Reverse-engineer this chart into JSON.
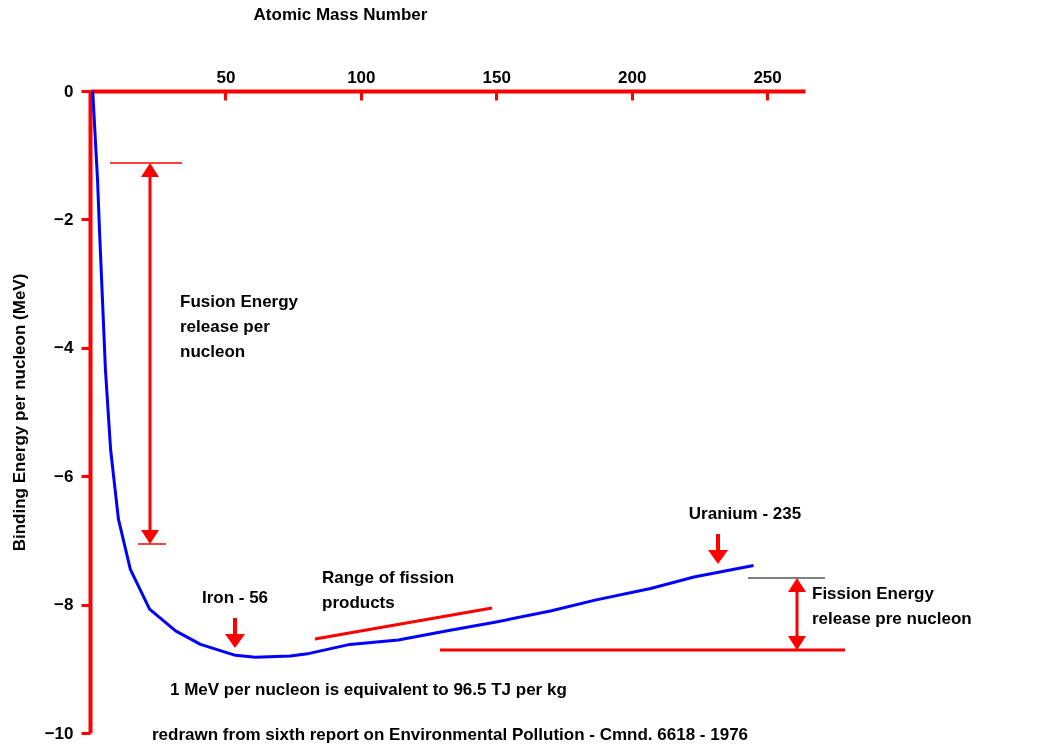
{
  "chart_data": {
    "type": "line",
    "xlabel": "Atomic Mass Number",
    "ylabel": "Binding Energy per nucleon (MeV)",
    "x": [
      1,
      2.8,
      3.5,
      4.6,
      5.7,
      7.6,
      10.5,
      14.9,
      22,
      31.6,
      40.8,
      53.7,
      61,
      74,
      81,
      96,
      113.8,
      133,
      150,
      170,
      186.5,
      207,
      223,
      245
    ],
    "series": [
      {
        "color": "#0000ff",
        "values": [
          0,
          -1.4,
          -2.16,
          -3.25,
          -4.34,
          -5.58,
          -6.67,
          -7.45,
          -8.07,
          -8.41,
          -8.62,
          -8.79,
          -8.82,
          -8.8,
          -8.76,
          -8.62,
          -8.55,
          -8.4,
          -8.27,
          -8.1,
          -7.93,
          -7.75,
          -7.57,
          -7.39
        ]
      }
    ],
    "xlim": [
      0,
      264
    ],
    "xticks": [
      50,
      100,
      150,
      200,
      250
    ],
    "ylim": [
      -10,
      0
    ],
    "yticks": [
      0,
      -2,
      -4,
      -6,
      -8,
      -10
    ],
    "grid": false,
    "marker": "none",
    "line_style": "solid",
    "annotations": [
      "Fusion Energy\nrelease per\nnucleon",
      "Iron - 56",
      "Range of fission\nproducts",
      "Uranium - 235",
      "Fission Energy\n release pre nucleon",
      "1 MeV per nucleon is equivalent to  96.5 TJ per kg",
      "redrawn from sixth report on Environmental Pollution -  Cmnd. 6618 - 1976"
    ]
  }
}
